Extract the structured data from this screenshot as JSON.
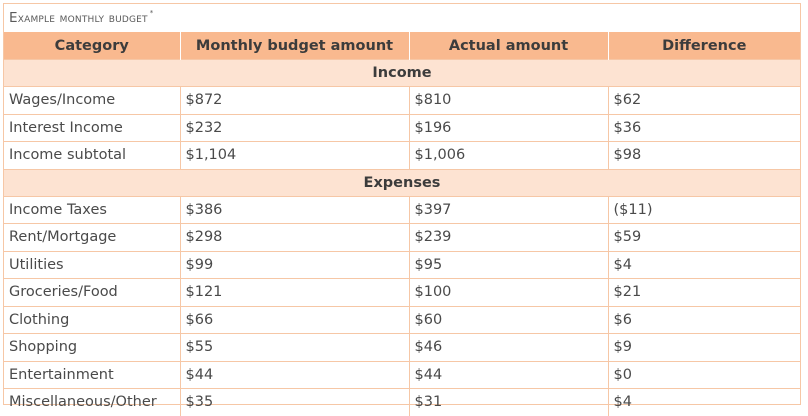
{
  "caption": {
    "text": "Example monthly budget",
    "marker": "*"
  },
  "headers": [
    "Category",
    "Monthly budget amount",
    "Actual amount",
    "Difference"
  ],
  "sections": [
    {
      "title": "Income",
      "rows": [
        [
          "Wages/Income",
          "$872",
          "$810",
          "$62"
        ],
        [
          "Interest Income",
          "$232",
          "$196",
          "$36"
        ],
        [
          "Income subtotal",
          "$1,104",
          "$1,006",
          "$98"
        ]
      ]
    },
    {
      "title": "Expenses",
      "rows": [
        [
          "Income Taxes",
          "$386",
          "$397",
          "($11)"
        ],
        [
          "Rent/Mortgage",
          "$298",
          "$239",
          "$59"
        ],
        [
          "Utilities",
          "$99",
          "$95",
          "$4"
        ],
        [
          "Groceries/Food",
          "$121",
          "$100",
          "$21"
        ],
        [
          "Clothing",
          "$66",
          "$60",
          "$6"
        ],
        [
          "Shopping",
          "$55",
          "$46",
          "$9"
        ],
        [
          "Entertainment",
          "$44",
          "$44",
          "$0"
        ],
        [
          "Miscellaneous/Other",
          "$35",
          "$31",
          "$4"
        ]
      ]
    }
  ],
  "colors": {
    "header_fill": "#f9b98f",
    "section_fill": "#fde3d2",
    "grid_line": "#f6c7a6"
  }
}
